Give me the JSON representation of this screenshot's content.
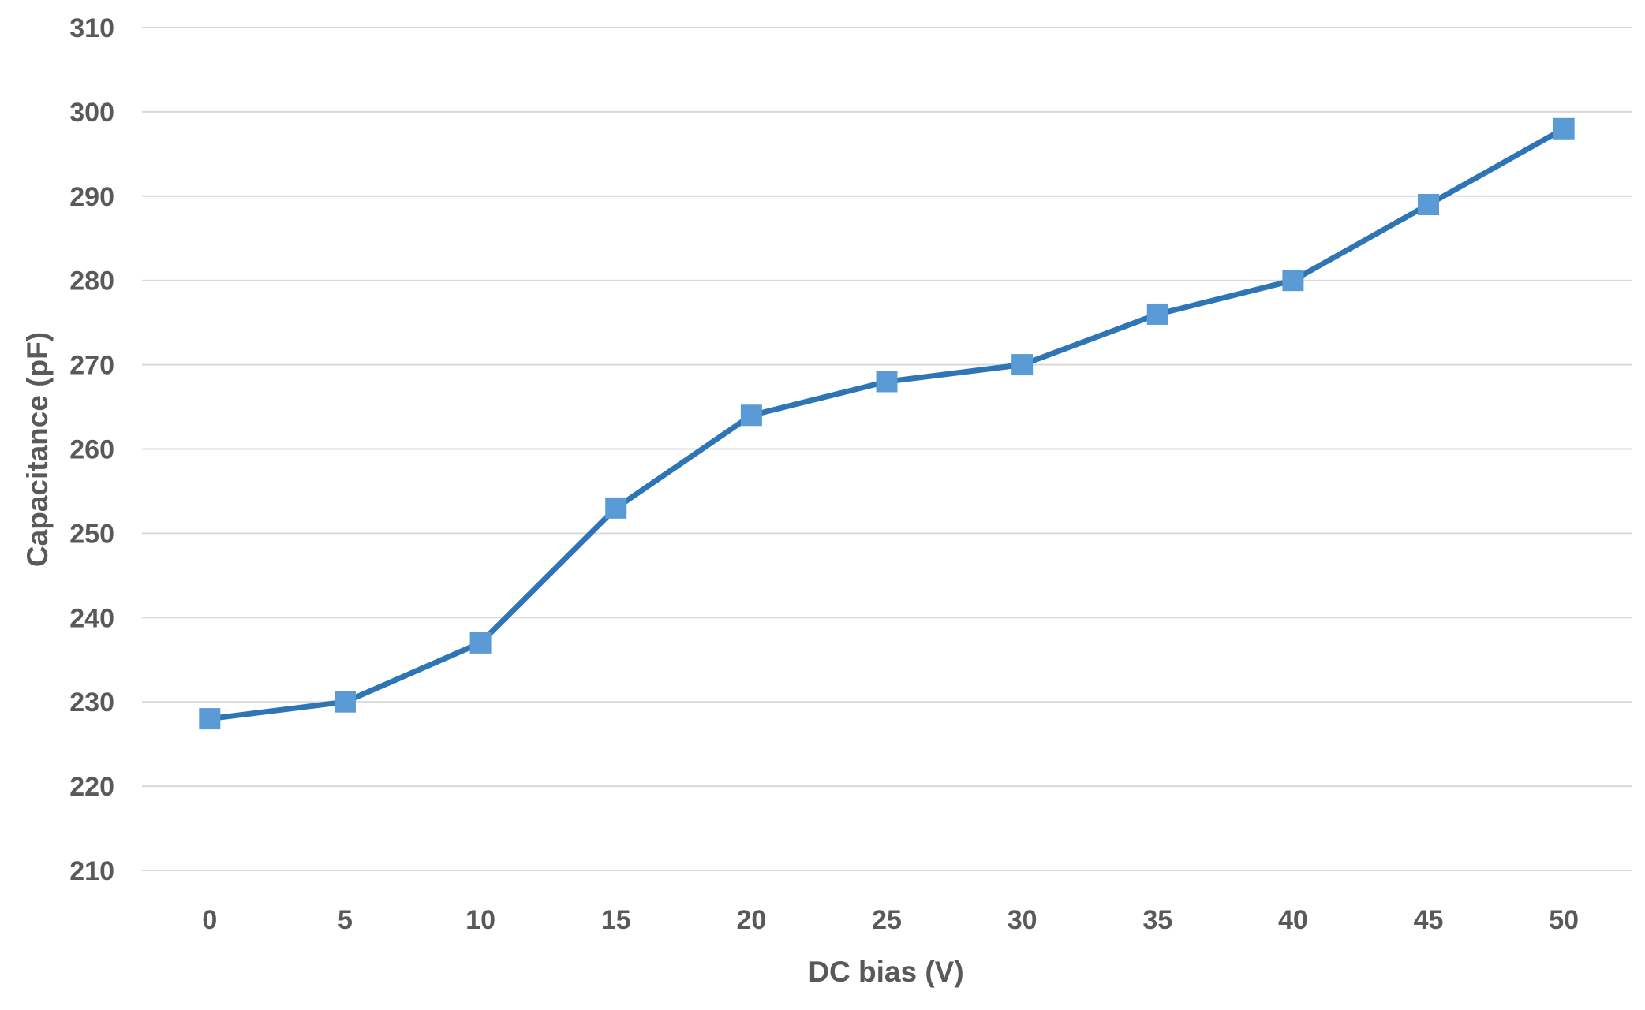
{
  "chart_data": {
    "type": "line",
    "title": "",
    "xlabel": "DC bias (V)",
    "ylabel": "Capacitance (pF)",
    "x": [
      0,
      5,
      10,
      15,
      20,
      25,
      30,
      35,
      40,
      45,
      50
    ],
    "x_tick_labels": [
      "0",
      "5",
      "10",
      "15",
      "20",
      "25",
      "30",
      "35",
      "40",
      "45",
      "50"
    ],
    "y_tick_labels": [
      "210",
      "220",
      "230",
      "240",
      "250",
      "260",
      "270",
      "280",
      "290",
      "300",
      "310"
    ],
    "ylim": [
      210,
      310
    ],
    "grid": true,
    "legend": "none",
    "series": [
      {
        "values": [
          228,
          230,
          237,
          253,
          264,
          268,
          270,
          276,
          280,
          289,
          298
        ],
        "line_color": "#2E75B6",
        "marker_color": "#5B9BD5",
        "marker": "square"
      }
    ]
  }
}
